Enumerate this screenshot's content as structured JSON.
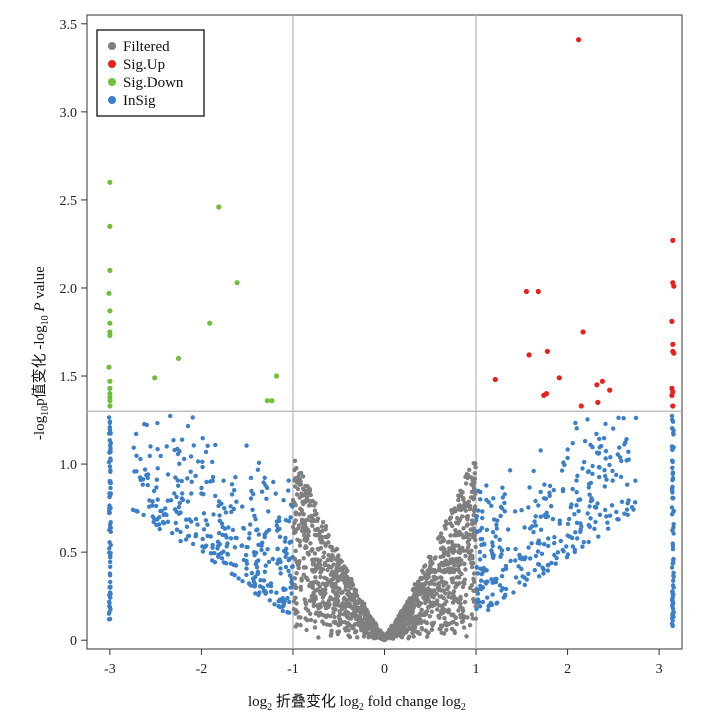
{
  "chart_data": {
    "type": "scatter",
    "title": "",
    "xlabel": {
      "parts": [
        {
          "t": "log",
          "sub": "2"
        },
        {
          "t": " 折叠变化 log",
          "sub": "2"
        },
        {
          "t": " fold change log",
          "sub": "2"
        }
      ]
    },
    "ylabel": {
      "parts": [
        {
          "t": "-log",
          "sub": "10"
        },
        {
          "t": "p值变化 -log",
          "sub": "10"
        },
        {
          "t": " "
        },
        {
          "t": "P",
          "italic": true
        },
        {
          "t": " value"
        }
      ]
    },
    "xlim": [
      -3.25,
      3.25
    ],
    "ylim": [
      -0.05,
      3.55
    ],
    "xticks": [
      -3,
      -2,
      -1,
      0,
      1,
      2,
      3
    ],
    "yticks": [
      0,
      0.5,
      1.0,
      1.5,
      2.0,
      2.5,
      3.0,
      3.5
    ],
    "ytick_labels": [
      "0",
      "0.5",
      "1.0",
      "1.5",
      "2.0",
      "2.5",
      "3.0",
      "3.5"
    ],
    "thresholds": {
      "x": [
        -1,
        1
      ],
      "y": 1.3
    },
    "legend": {
      "placement": "top-left",
      "entries": [
        {
          "name": "Filtered",
          "color": "#7f7f7f"
        },
        {
          "name": "Sig.Up",
          "color": "#e8211d"
        },
        {
          "name": "Sig.Down",
          "color": "#6fbf3a"
        },
        {
          "name": "InSig",
          "color": "#3a7fc7"
        }
      ]
    },
    "series": [
      {
        "name": "Sig.Up",
        "color": "#e8211d",
        "x": [
          2.12,
          1.55,
          1.68,
          2.17,
          1.58,
          1.78,
          1.21,
          1.91,
          1.77,
          1.74,
          2.38,
          2.32,
          2.46,
          2.15,
          2.33,
          3.15,
          3.15,
          3.16,
          3.14,
          3.15,
          3.15,
          3.16,
          3.14,
          3.15,
          3.14,
          3.15
        ],
        "y": [
          3.41,
          1.98,
          1.98,
          1.75,
          1.62,
          1.64,
          1.48,
          1.49,
          1.4,
          1.39,
          1.47,
          1.45,
          1.42,
          1.33,
          1.35,
          2.27,
          2.03,
          2.01,
          1.81,
          1.68,
          1.64,
          1.63,
          1.43,
          1.41,
          1.39,
          1.33
        ]
      },
      {
        "name": "Sig.Down",
        "color": "#6fbf3a",
        "x": [
          -1.81,
          -1.61,
          -1.91,
          -2.25,
          -2.51,
          -1.18,
          -1.28,
          -1.23,
          -3.0,
          -3.0,
          -3.0,
          -3.01,
          -3.0,
          -3.0,
          -3.0,
          -3.0,
          -3.01,
          -3.0,
          -3.0,
          -3.0,
          -3.0,
          -3.0,
          -3.0
        ],
        "y": [
          2.46,
          2.03,
          1.8,
          1.6,
          1.49,
          1.5,
          1.36,
          1.36,
          2.6,
          2.35,
          2.1,
          1.97,
          1.87,
          1.8,
          1.75,
          1.73,
          1.55,
          1.47,
          1.43,
          1.4,
          1.38,
          1.36,
          1.33
        ]
      },
      {
        "name": "InSig",
        "color": "#3a7fc7",
        "seed": 17,
        "count": 820
      },
      {
        "name": "Filtered",
        "color": "#7f7f7f",
        "seed": 5,
        "count": 1500
      }
    ]
  }
}
